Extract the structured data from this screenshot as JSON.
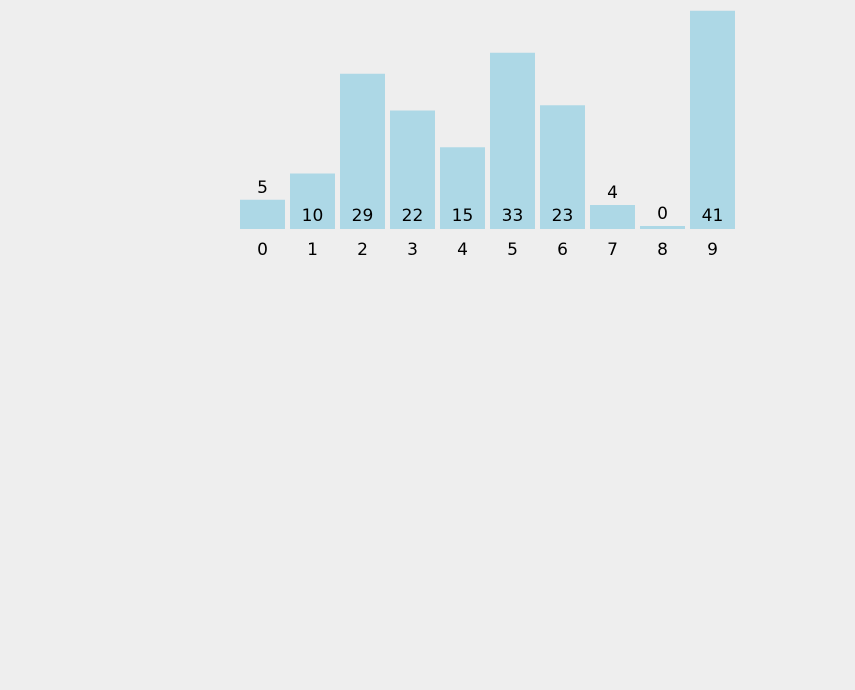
{
  "chart_data": {
    "type": "bar",
    "categories": [
      "0",
      "1",
      "2",
      "3",
      "4",
      "5",
      "6",
      "7",
      "8",
      "9"
    ],
    "values": [
      5,
      10,
      29,
      22,
      15,
      33,
      23,
      4,
      0,
      41
    ],
    "title": "",
    "xlabel": "",
    "ylabel": "",
    "ylim": [
      0,
      41
    ],
    "grid": false,
    "bar_color": "#add8e6",
    "background": "#eeeeee"
  }
}
